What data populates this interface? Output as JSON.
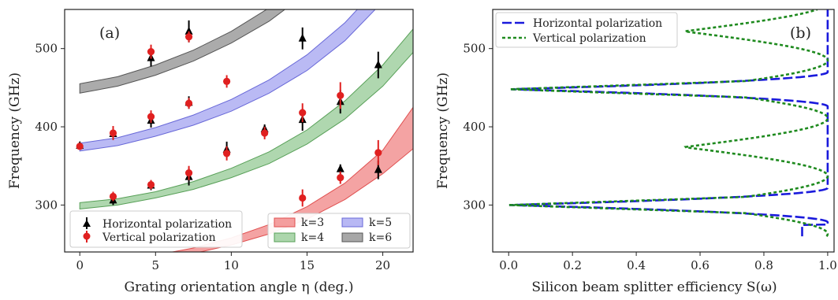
{
  "chart_data": [
    {
      "type": "scatter",
      "panel_label": "(a)",
      "xlabel": "Grating orientation angle η (deg.)",
      "ylabel": "Frequency (GHz)",
      "xlim": [
        -1,
        22
      ],
      "ylim": [
        240,
        550
      ],
      "xticks": [
        0,
        5,
        10,
        15,
        20
      ],
      "yticks": [
        300,
        400,
        500
      ],
      "bands": [
        {
          "name": "k=3",
          "color": "#f08080",
          "edge": "#e05050",
          "eta": [
            0,
            2.5,
            5,
            7.5,
            10,
            12.5,
            15,
            17.5,
            20,
            22
          ],
          "lower": [
            222,
            225,
            230,
            238,
            249,
            263,
            282,
            307,
            340,
            372
          ],
          "upper": [
            226,
            229,
            236,
            245,
            258,
            275,
            298,
            328,
            370,
            425
          ]
        },
        {
          "name": "k=4",
          "color": "#90c890",
          "edge": "#58a058",
          "eta": [
            0,
            2.5,
            5,
            7.5,
            10,
            12.5,
            15,
            17.5,
            20,
            22
          ],
          "lower": [
            295,
            300,
            309,
            320,
            335,
            353,
            378,
            410,
            452,
            495
          ],
          "upper": [
            303,
            308,
            317,
            330,
            347,
            368,
            396,
            433,
            479,
            525
          ]
        },
        {
          "name": "k=5",
          "color": "#a0a0f0",
          "edge": "#6868d8",
          "eta": [
            0,
            2.5,
            5,
            7.5,
            10,
            12.5,
            15,
            17.5,
            20,
            22
          ],
          "lower": [
            369,
            376,
            388,
            402,
            420,
            443,
            472,
            510,
            560,
            610
          ],
          "upper": [
            379,
            386,
            399,
            415,
            435,
            460,
            492,
            533,
            585,
            635
          ]
        },
        {
          "name": "k=6",
          "color": "#8a8a8a",
          "edge": "#555555",
          "eta": [
            0,
            2.5,
            5,
            7.5,
            10,
            12.5,
            15,
            17.5,
            20,
            22
          ],
          "lower": [
            443,
            452,
            466,
            484,
            507,
            535,
            571,
            617,
            675,
            735
          ],
          "upper": [
            455,
            464,
            479,
            498,
            522,
            552,
            590,
            638,
            700,
            760
          ]
        }
      ],
      "series": [
        {
          "name": "Horizontal polarization",
          "marker": "triangle",
          "color": "#000000",
          "points": [
            {
              "x": 0,
              "y": 376,
              "err": 4
            },
            {
              "x": 2.2,
              "y": 306,
              "err": 6
            },
            {
              "x": 2.2,
              "y": 391,
              "err": 7
            },
            {
              "x": 4.7,
              "y": 325,
              "err": 6
            },
            {
              "x": 4.7,
              "y": 408,
              "err": 9
            },
            {
              "x": 4.7,
              "y": 488,
              "err": 11
            },
            {
              "x": 7.2,
              "y": 336,
              "err": 11
            },
            {
              "x": 7.2,
              "y": 431,
              "err": 8
            },
            {
              "x": 7.2,
              "y": 522,
              "err": 14
            },
            {
              "x": 9.7,
              "y": 371,
              "err": 10
            },
            {
              "x": 12.2,
              "y": 397,
              "err": 6
            },
            {
              "x": 14.7,
              "y": 409,
              "err": 14
            },
            {
              "x": 14.7,
              "y": 513,
              "err": 14
            },
            {
              "x": 17.2,
              "y": 346,
              "err": 6
            },
            {
              "x": 17.2,
              "y": 432,
              "err": 15
            },
            {
              "x": 19.7,
              "y": 345,
              "err": 12
            },
            {
              "x": 19.7,
              "y": 479,
              "err": 17
            }
          ]
        },
        {
          "name": "Vertical polarization",
          "marker": "circle",
          "color": "#e02020",
          "points": [
            {
              "x": 0,
              "y": 375,
              "err": 4
            },
            {
              "x": 2.2,
              "y": 311,
              "err": 6
            },
            {
              "x": 2.2,
              "y": 392,
              "err": 9
            },
            {
              "x": 4.7,
              "y": 326,
              "err": 6
            },
            {
              "x": 4.7,
              "y": 413,
              "err": 8
            },
            {
              "x": 4.7,
              "y": 496,
              "err": 9
            },
            {
              "x": 7.2,
              "y": 341,
              "err": 9
            },
            {
              "x": 7.2,
              "y": 430,
              "err": 7
            },
            {
              "x": 7.2,
              "y": 515,
              "err": 7
            },
            {
              "x": 9.7,
              "y": 366,
              "err": 9
            },
            {
              "x": 9.7,
              "y": 458,
              "err": 8
            },
            {
              "x": 12.2,
              "y": 392,
              "err": 8
            },
            {
              "x": 14.7,
              "y": 309,
              "err": 11
            },
            {
              "x": 14.7,
              "y": 418,
              "err": 12
            },
            {
              "x": 17.2,
              "y": 335,
              "err": 8
            },
            {
              "x": 17.2,
              "y": 440,
              "err": 17
            },
            {
              "x": 19.7,
              "y": 367,
              "err": 16
            }
          ]
        }
      ],
      "legend_markers": [
        "Horizontal polarization",
        "Vertical polarization"
      ],
      "legend_bands": [
        "k=3",
        "k=5",
        "k=4",
        "k=6"
      ],
      "legend_markers_position": "lower-left",
      "legend_bands_position": "lower-right"
    },
    {
      "type": "line",
      "panel_label": "(b)",
      "xlabel": "Silicon beam splitter efficiency S(ω)",
      "ylabel": "Frequency (GHz)",
      "xlim": [
        -0.05,
        1.02
      ],
      "ylim": [
        240,
        550
      ],
      "xticks": [
        "0.0",
        "0.2",
        "0.4",
        "0.6",
        "0.8",
        "1.0"
      ],
      "yticks": [
        300,
        400,
        500
      ],
      "legend_position": "top-left",
      "series": [
        {
          "name": "Horizontal polarization",
          "color": "#1a1adc",
          "dash": "long",
          "f_range": [
            260,
            550
          ],
          "period": 148,
          "null": 448,
          "amplitude": 1.0,
          "phase_deg": 0
        },
        {
          "name": "Vertical polarization",
          "color": "#1e8a1e",
          "dash": "short",
          "f_range": [
            260,
            550
          ],
          "period": 148,
          "null": 448,
          "amplitude": 0.45,
          "phase_deg": 0
        }
      ]
    }
  ]
}
